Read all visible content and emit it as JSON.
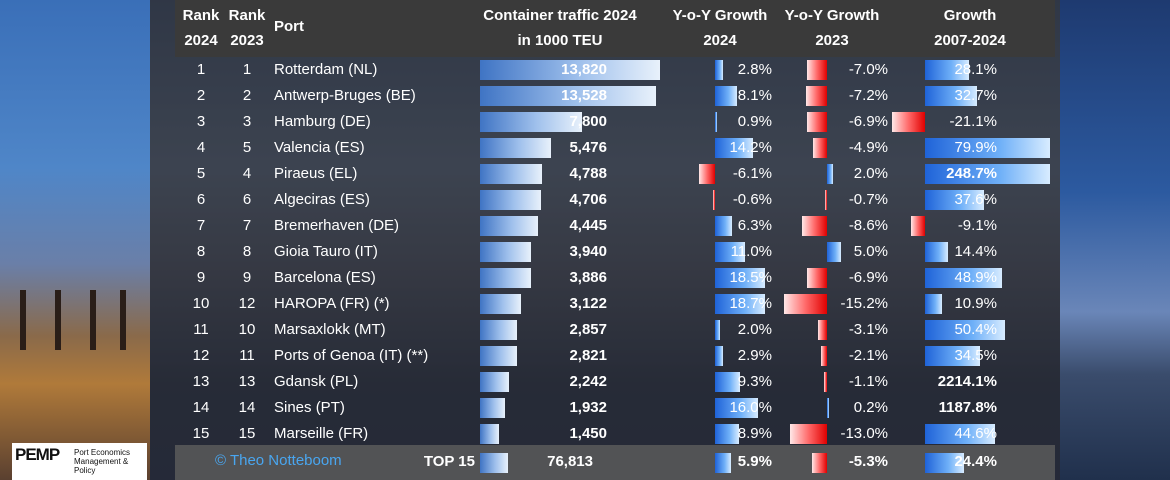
{
  "headers": {
    "rank2024_a": "Rank",
    "rank2024_b": "2024",
    "rank2023_a": "Rank",
    "rank2023_b": "2023",
    "port": "Port",
    "traffic_a": "Container traffic 2024",
    "traffic_b": "in 1000 TEU",
    "yoy24_a": "Y-o-Y Growth",
    "yoy24_b": "2024",
    "yoy23_a": "Y-o-Y Growth",
    "yoy23_b": "2023",
    "growth_a": "Growth",
    "growth_b": "2007-2024"
  },
  "rows": [
    {
      "rank2024": "1",
      "rank2023": "1",
      "port": "Rotterdam (NL)",
      "teu": 13820,
      "teu_label": "13,820",
      "g24": 2.8,
      "g24_label": "2.8%",
      "g23": -7.0,
      "g23_label": "-7.0%",
      "g0724": 28.1,
      "g0724_label": "28.1%"
    },
    {
      "rank2024": "2",
      "rank2023": "2",
      "port": "Antwerp-Bruges (BE)",
      "teu": 13528,
      "teu_label": "13,528",
      "g24": 8.1,
      "g24_label": "8.1%",
      "g23": -7.2,
      "g23_label": "-7.2%",
      "g0724": 32.7,
      "g0724_label": "32.7%"
    },
    {
      "rank2024": "3",
      "rank2023": "3",
      "port": "Hamburg (DE)",
      "teu": 7800,
      "teu_label": "7,800",
      "g24": 0.9,
      "g24_label": "0.9%",
      "g23": -6.9,
      "g23_label": "-6.9%",
      "g0724": -21.1,
      "g0724_label": "-21.1%"
    },
    {
      "rank2024": "4",
      "rank2023": "5",
      "port": "Valencia (ES)",
      "teu": 5476,
      "teu_label": "5,476",
      "g24": 14.2,
      "g24_label": "14.2%",
      "g23": -4.9,
      "g23_label": "-4.9%",
      "g0724": 79.9,
      "g0724_label": "79.9%"
    },
    {
      "rank2024": "5",
      "rank2023": "4",
      "port": "Piraeus (EL)",
      "teu": 4788,
      "teu_label": "4,788",
      "g24": -6.1,
      "g24_label": "-6.1%",
      "g23": 2.0,
      "g23_label": "2.0%",
      "g0724": 248.7,
      "g0724_label": "248.7%"
    },
    {
      "rank2024": "6",
      "rank2023": "6",
      "port": "Algeciras (ES)",
      "teu": 4706,
      "teu_label": "4,706",
      "g24": -0.6,
      "g24_label": "-0.6%",
      "g23": -0.7,
      "g23_label": "-0.7%",
      "g0724": 37.6,
      "g0724_label": "37.6%"
    },
    {
      "rank2024": "7",
      "rank2023": "7",
      "port": "Bremerhaven (DE)",
      "teu": 4445,
      "teu_label": "4,445",
      "g24": 6.3,
      "g24_label": "6.3%",
      "g23": -8.6,
      "g23_label": "-8.6%",
      "g0724": -9.1,
      "g0724_label": "-9.1%"
    },
    {
      "rank2024": "8",
      "rank2023": "8",
      "port": "Gioia Tauro (IT)",
      "teu": 3940,
      "teu_label": "3,940",
      "g24": 11.0,
      "g24_label": "11.0%",
      "g23": 5.0,
      "g23_label": "5.0%",
      "g0724": 14.4,
      "g0724_label": "14.4%"
    },
    {
      "rank2024": "9",
      "rank2023": "9",
      "port": "Barcelona (ES)",
      "teu": 3886,
      "teu_label": "3,886",
      "g24": 18.5,
      "g24_label": "18.5%",
      "g23": -6.9,
      "g23_label": "-6.9%",
      "g0724": 48.9,
      "g0724_label": "48.9%"
    },
    {
      "rank2024": "10",
      "rank2023": "12",
      "port": "HAROPA (FR) (*)",
      "teu": 3122,
      "teu_label": "3,122",
      "g24": 18.7,
      "g24_label": "18.7%",
      "g23": -15.2,
      "g23_label": "-15.2%",
      "g0724": 10.9,
      "g0724_label": "10.9%"
    },
    {
      "rank2024": "11",
      "rank2023": "10",
      "port": "Marsaxlokk (MT)",
      "teu": 2857,
      "teu_label": "2,857",
      "g24": 2.0,
      "g24_label": "2.0%",
      "g23": -3.1,
      "g23_label": "-3.1%",
      "g0724": 50.4,
      "g0724_label": "50.4%"
    },
    {
      "rank2024": "12",
      "rank2023": "11",
      "port": "Ports of Genoa (IT) (**)",
      "teu": 2821,
      "teu_label": "2,821",
      "g24": 2.9,
      "g24_label": "2.9%",
      "g23": -2.1,
      "g23_label": "-2.1%",
      "g0724": 34.5,
      "g0724_label": "34.5%"
    },
    {
      "rank2024": "13",
      "rank2023": "13",
      "port": "Gdansk (PL)",
      "teu": 2242,
      "teu_label": "2,242",
      "g24": 9.3,
      "g24_label": "9.3%",
      "g23": -1.1,
      "g23_label": "-1.1%",
      "g0724": 2214.1,
      "g0724_label": "2214.1%"
    },
    {
      "rank2024": "14",
      "rank2023": "14",
      "port": "Sines (PT)",
      "teu": 1932,
      "teu_label": "1,932",
      "g24": 16.0,
      "g24_label": "16.0%",
      "g23": 0.2,
      "g23_label": "0.2%",
      "g0724": 1187.8,
      "g0724_label": "1187.8%"
    },
    {
      "rank2024": "15",
      "rank2023": "15",
      "port": "Marseille (FR)",
      "teu": 1450,
      "teu_label": "1,450",
      "g24": 8.9,
      "g24_label": "8.9%",
      "g23": -13.0,
      "g23_label": "-13.0%",
      "g0724": 44.6,
      "g0724_label": "44.6%"
    }
  ],
  "total": {
    "label": "TOP 15",
    "teu": 76813,
    "teu_label": "76,813",
    "g24": 5.9,
    "g24_label": "5.9%",
    "g23": -5.3,
    "g23_label": "-5.3%",
    "g0724": 24.4,
    "g0724_label": "24.4%"
  },
  "credit": "© Theo Notteboom",
  "logo": {
    "mark": "PEMP",
    "line1": "Port Economics",
    "line2": "Management & Policy"
  },
  "chart_data": {
    "type": "table",
    "title": "Container traffic 2024 in 1000 TEU",
    "columns": [
      "Rank 2024",
      "Rank 2023",
      "Port",
      "Container traffic 2024 in 1000 TEU",
      "Y-o-Y Growth 2024",
      "Y-o-Y Growth 2023",
      "Growth 2007-2024"
    ],
    "scales": {
      "teu_max": 13820,
      "g24_range": [
        -20,
        20
      ],
      "g23_range": [
        -20,
        20
      ],
      "g0724_range": [
        -40,
        80
      ]
    }
  },
  "colors": {
    "positive": "#2f7be8",
    "negative": "#e00000",
    "header": "#3a3a3a"
  }
}
